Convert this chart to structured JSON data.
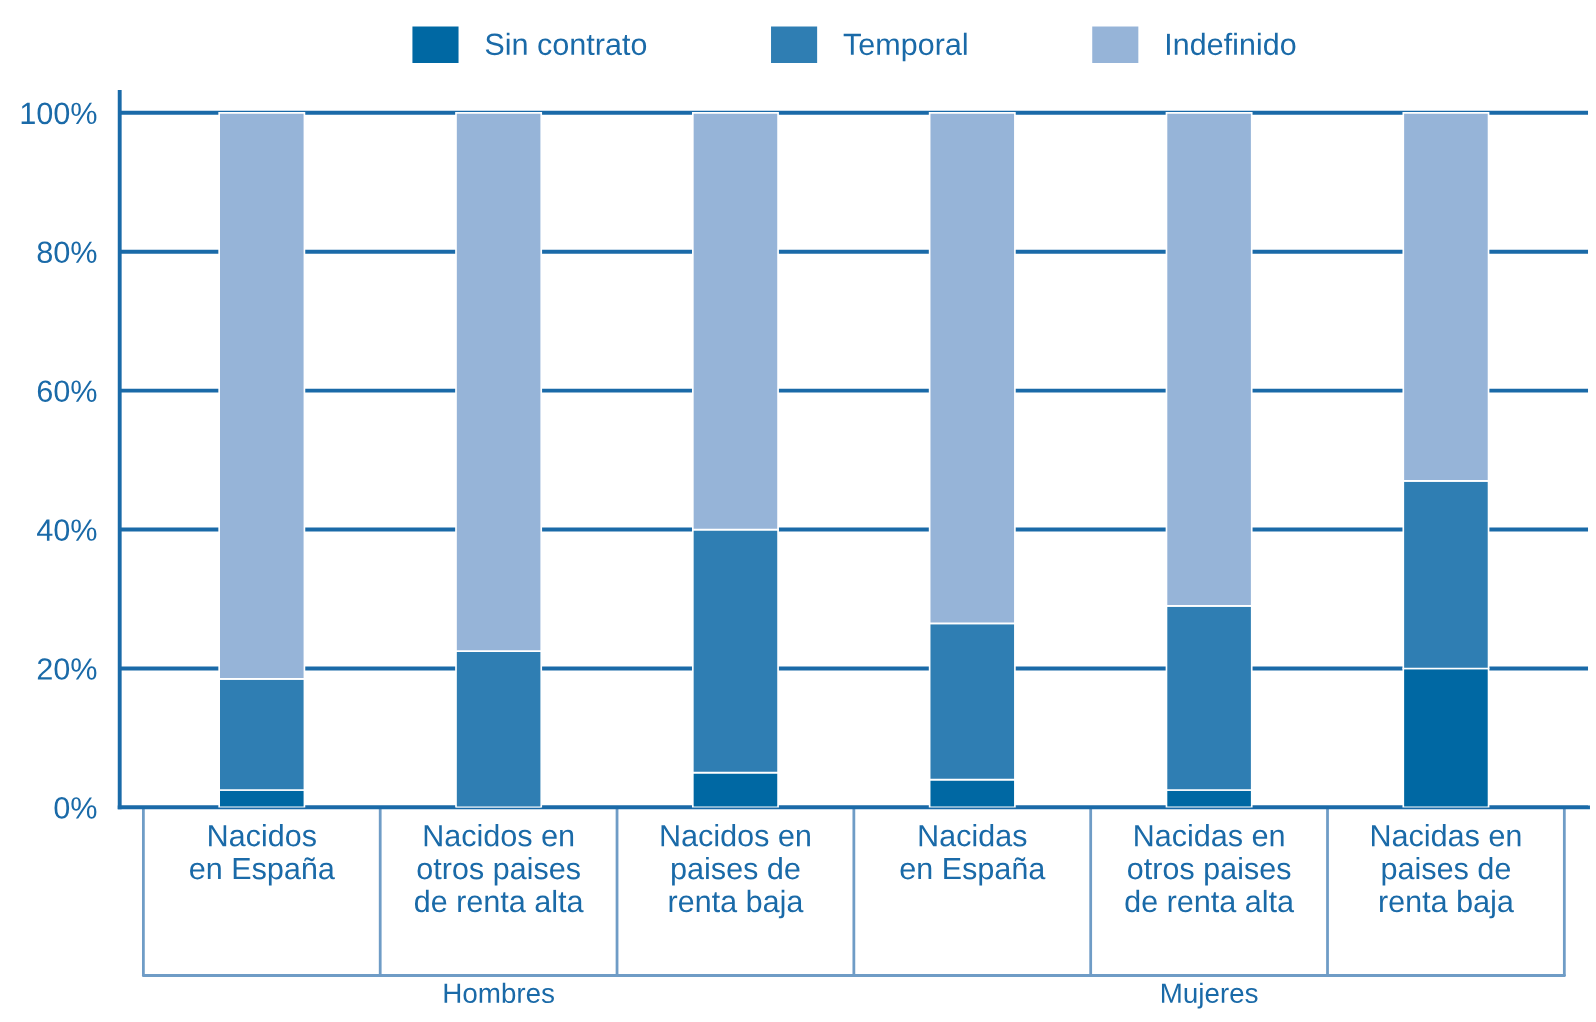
{
  "chart_data": {
    "type": "bar",
    "stacked": true,
    "categories": [
      "Nacidos\nen España",
      "Nacidos en\notros paises\nde renta alta",
      "Nacidos en\npaises de\nrenta baja",
      "Nacidas\nen España",
      "Nacidas en\notros paises\nde renta alta",
      "Nacidas en\npaises de\nrenta baja"
    ],
    "series": [
      {
        "name": "Sin contrato",
        "color": "#0068a3",
        "values": [
          2.5,
          0,
          5,
          4,
          2.5,
          20
        ]
      },
      {
        "name": "Temporal",
        "color": "#2f7eb3",
        "values": [
          16,
          22.5,
          35,
          22.5,
          26.5,
          27
        ]
      },
      {
        "name": "Indefinido",
        "color": "#96b4d8",
        "values": [
          81.5,
          77.5,
          60,
          73.5,
          71,
          53
        ]
      }
    ],
    "ylim": [
      0,
      103
    ],
    "yticks": [
      {
        "value": 0,
        "label": "0%"
      },
      {
        "value": 20,
        "label": "20%"
      },
      {
        "value": 40,
        "label": "40%"
      },
      {
        "value": 60,
        "label": "60%"
      },
      {
        "value": 80,
        "label": "80%"
      },
      {
        "value": 100,
        "label": "100%"
      }
    ],
    "grid": "y",
    "legend": "top",
    "annotations": [
      "Hombres",
      "Mujeres"
    ]
  }
}
